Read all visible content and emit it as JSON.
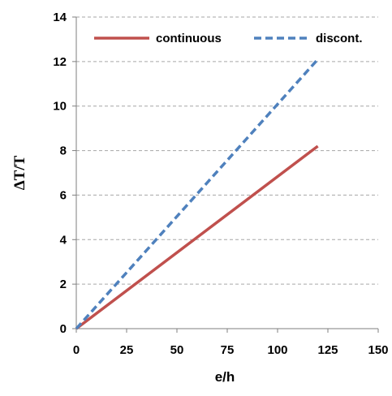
{
  "chart_data": {
    "type": "line",
    "xlabel": "e/h",
    "ylabel": "ΔT/T",
    "xlim": [
      0,
      150
    ],
    "ylim": [
      0,
      14
    ],
    "xticks": [
      0,
      25,
      50,
      75,
      100,
      125,
      150
    ],
    "yticks": [
      0,
      2,
      4,
      6,
      8,
      10,
      12,
      14
    ],
    "grid": "horizontal dashed",
    "legend_position": "top",
    "series": [
      {
        "name": "continuous",
        "color": "#c0504d",
        "style": "solid",
        "x": [
          0,
          120
        ],
        "y": [
          0,
          8.2
        ]
      },
      {
        "name": "discont.",
        "color": "#4f81bd",
        "style": "dashed",
        "x": [
          0,
          120
        ],
        "y": [
          0,
          12.1
        ]
      }
    ]
  }
}
